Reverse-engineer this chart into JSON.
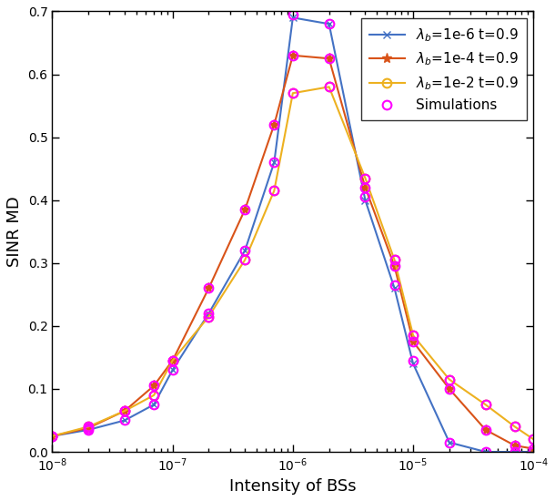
{
  "title": "",
  "xlabel": "Intensity of BSs",
  "ylabel": "SINR MD",
  "xlim_log": [
    -8,
    -4
  ],
  "ylim": [
    0,
    0.7
  ],
  "yticks": [
    0.0,
    0.1,
    0.2,
    0.3,
    0.4,
    0.5,
    0.6,
    0.7
  ],
  "x_values": [
    1e-08,
    2e-08,
    4e-08,
    7e-08,
    1e-07,
    2e-07,
    4e-07,
    7e-07,
    1e-06,
    2e-06,
    4e-06,
    7e-06,
    1e-05,
    2e-05,
    4e-05,
    7e-05,
    0.0001
  ],
  "line1_label": "$\\lambda_b$=1e-6 t=0.9",
  "line1_color": "#4472C4",
  "line1_marker": "x",
  "line1_y": [
    0.025,
    0.035,
    0.05,
    0.075,
    0.13,
    0.22,
    0.32,
    0.46,
    0.69,
    0.68,
    0.4,
    0.26,
    0.14,
    0.015,
    0.0,
    0.0,
    0.0
  ],
  "line2_label": "$\\lambda_b$=1e-4 t=0.9",
  "line2_color": "#D95319",
  "line2_marker": "*",
  "line2_y": [
    0.025,
    0.038,
    0.065,
    0.105,
    0.145,
    0.26,
    0.385,
    0.52,
    0.63,
    0.625,
    0.42,
    0.295,
    0.175,
    0.1,
    0.035,
    0.01,
    0.005
  ],
  "line3_label": "$\\lambda_b$=1e-2 t=0.9",
  "line3_color": "#EDB120",
  "line3_marker": "o",
  "line3_y": [
    0.025,
    0.04,
    0.065,
    0.09,
    0.145,
    0.215,
    0.305,
    0.415,
    0.57,
    0.58,
    0.435,
    0.305,
    0.185,
    0.115,
    0.075,
    0.04,
    0.02
  ],
  "sim_label": "Simulations",
  "sim_color": "#FF00FF",
  "sim_marker": "o",
  "sim_y_1": [
    0.025,
    0.035,
    0.05,
    0.075,
    0.13,
    0.22,
    0.32,
    0.46,
    0.695,
    0.68,
    0.405,
    0.265,
    0.145,
    0.015,
    0.0,
    0.0,
    0.0
  ],
  "sim_y_2": [
    0.025,
    0.038,
    0.065,
    0.105,
    0.145,
    0.26,
    0.385,
    0.52,
    0.63,
    0.625,
    0.42,
    0.295,
    0.175,
    0.1,
    0.035,
    0.01,
    0.005
  ],
  "sim_y_3": [
    0.025,
    0.04,
    0.065,
    0.09,
    0.145,
    0.215,
    0.305,
    0.415,
    0.57,
    0.58,
    0.435,
    0.305,
    0.185,
    0.115,
    0.075,
    0.04,
    0.02
  ]
}
